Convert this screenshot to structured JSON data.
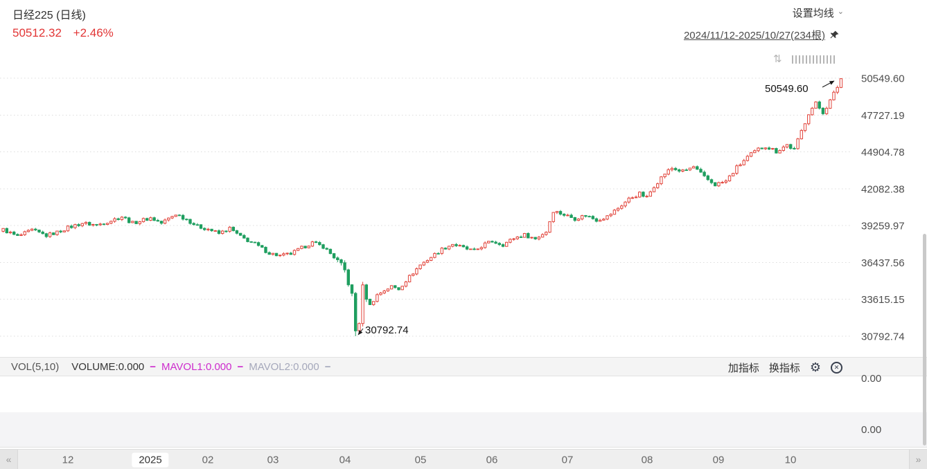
{
  "header": {
    "title": "日经225 (日线)",
    "price": "50512.32",
    "change": "+2.46%",
    "ma_settings": "设置均线",
    "date_range": "2024/11/12-2025/10/27(234根)"
  },
  "icons": {
    "chevron_down": "⌄",
    "gear": "⚙",
    "close": "✕",
    "prev": "«",
    "next": "»",
    "updown": "⇅"
  },
  "colors": {
    "up": "#e2443b",
    "down": "#1e9e5f",
    "price": "#e23535",
    "mavol1": "#cd2bcd",
    "mavol2": "#a5a8bb",
    "grid": "#dcdcdc"
  },
  "vol_panel": {
    "indicator": "VOL(5,10)",
    "volume": "VOLUME:0.000",
    "dash1": "−",
    "mavol1": "MAVOL1:0.000",
    "dash2": "−",
    "mavol2": "MAVOL2:0.000",
    "dash3": "−",
    "add_indicator": "加指标",
    "switch_indicator": "换指标",
    "value_top": "0.00",
    "value_bottom": "0.00"
  },
  "chart_data": {
    "type": "candlestick",
    "title": "日经225 (日线)",
    "bar_count": 234,
    "date_range": "2024/11/12-2025/10/27",
    "last_close": 50512.32,
    "last_change_pct": 2.46,
    "last_high": 50549.6,
    "low": 30792.74,
    "low_index": 98,
    "annotation_high": "50549.60",
    "annotation_low": "30792.74",
    "y_ticks": [
      "50549.60",
      "47727.19",
      "44904.78",
      "42082.38",
      "39259.97",
      "36437.56",
      "33615.15",
      "30792.74"
    ],
    "x_ticks": [
      {
        "label": "12",
        "idx": 18
      },
      {
        "label": "2025",
        "idx": 41,
        "current": true
      },
      {
        "label": "02",
        "idx": 57
      },
      {
        "label": "03",
        "idx": 75
      },
      {
        "label": "04",
        "idx": 95
      },
      {
        "label": "05",
        "idx": 116
      },
      {
        "label": "06",
        "idx": 136
      },
      {
        "label": "07",
        "idx": 157
      },
      {
        "label": "08",
        "idx": 179
      },
      {
        "label": "09",
        "idx": 199
      },
      {
        "label": "10",
        "idx": 219
      }
    ],
    "approx_close_anchors": [
      [
        0,
        38950
      ],
      [
        4,
        38420
      ],
      [
        8,
        38900
      ],
      [
        12,
        38500
      ],
      [
        15,
        38750
      ],
      [
        18,
        39100
      ],
      [
        22,
        39450
      ],
      [
        26,
        39300
      ],
      [
        30,
        39650
      ],
      [
        33,
        39950
      ],
      [
        36,
        39450
      ],
      [
        39,
        39700
      ],
      [
        41,
        39850
      ],
      [
        44,
        39450
      ],
      [
        48,
        40150
      ],
      [
        51,
        39750
      ],
      [
        54,
        39200
      ],
      [
        57,
        39000
      ],
      [
        60,
        38650
      ],
      [
        63,
        39050
      ],
      [
        66,
        38400
      ],
      [
        70,
        37850
      ],
      [
        74,
        37150
      ],
      [
        77,
        36950
      ],
      [
        80,
        37100
      ],
      [
        83,
        37550
      ],
      [
        86,
        37950
      ],
      [
        89,
        37650
      ],
      [
        92,
        36850
      ],
      [
        95,
        35800
      ],
      [
        96,
        34900
      ],
      [
        97,
        33900
      ],
      [
        98,
        31200
      ],
      [
        99,
        31900
      ],
      [
        100,
        34500
      ],
      [
        102,
        33150
      ],
      [
        104,
        33950
      ],
      [
        106,
        34300
      ],
      [
        108,
        34600
      ],
      [
        110,
        34400
      ],
      [
        112,
        35050
      ],
      [
        114,
        35650
      ],
      [
        116,
        36250
      ],
      [
        119,
        36850
      ],
      [
        122,
        37450
      ],
      [
        125,
        37850
      ],
      [
        128,
        37550
      ],
      [
        131,
        37300
      ],
      [
        134,
        37850
      ],
      [
        136,
        38050
      ],
      [
        139,
        37800
      ],
      [
        142,
        38300
      ],
      [
        145,
        38550
      ],
      [
        148,
        38250
      ],
      [
        151,
        38800
      ],
      [
        153,
        40400
      ],
      [
        156,
        40100
      ],
      [
        159,
        39800
      ],
      [
        162,
        40050
      ],
      [
        165,
        39700
      ],
      [
        168,
        39950
      ],
      [
        171,
        40600
      ],
      [
        174,
        41300
      ],
      [
        177,
        41700
      ],
      [
        179,
        41400
      ],
      [
        181,
        42300
      ],
      [
        184,
        43250
      ],
      [
        186,
        43650
      ],
      [
        189,
        43400
      ],
      [
        192,
        43750
      ],
      [
        195,
        42950
      ],
      [
        198,
        42400
      ],
      [
        201,
        42650
      ],
      [
        204,
        43700
      ],
      [
        207,
        44500
      ],
      [
        210,
        45100
      ],
      [
        212,
        45350
      ],
      [
        215,
        44950
      ],
      [
        218,
        45450
      ],
      [
        220,
        45050
      ],
      [
        222,
        46500
      ],
      [
        224,
        47900
      ],
      [
        226,
        48600
      ],
      [
        228,
        47950
      ],
      [
        230,
        48800
      ],
      [
        232,
        49900
      ],
      [
        233,
        50512.32
      ]
    ]
  }
}
